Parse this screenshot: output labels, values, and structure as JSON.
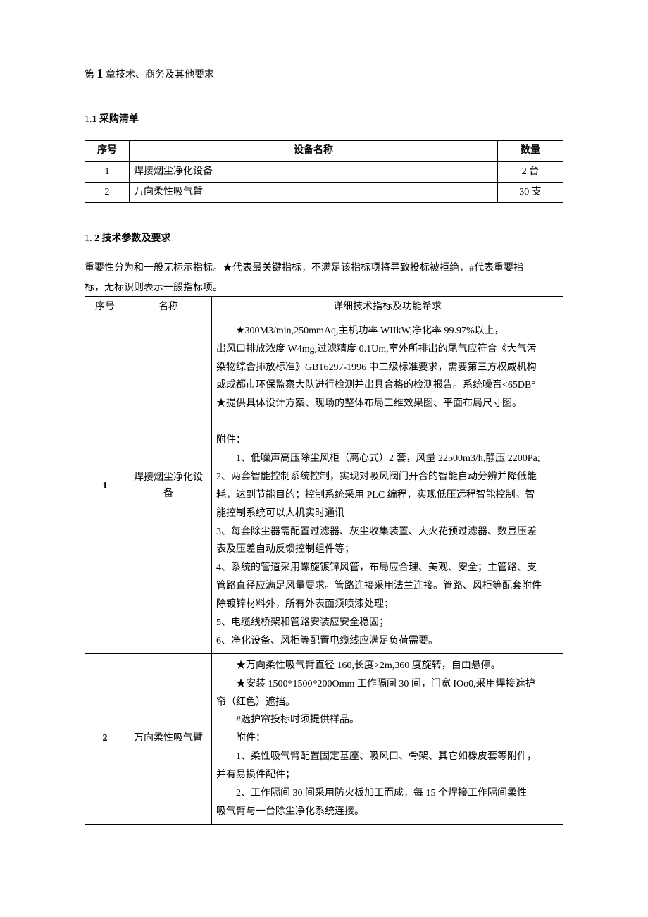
{
  "chapter": {
    "prefix": "第",
    "num": "1",
    "suffix": "章技术、商务及其他要求"
  },
  "section1": {
    "prefix": "1.",
    "num": "1",
    "label": "采购清单"
  },
  "purchase_table": {
    "headers": {
      "seq": "序号",
      "name": "设备名称",
      "qty": "数量"
    },
    "rows": [
      {
        "seq": "1",
        "name": "焊接烟尘净化设备",
        "qty": "2 台"
      },
      {
        "seq": "2",
        "name": "万向柔性吸气臂",
        "qty": "30 支"
      }
    ]
  },
  "section2": {
    "prefix": "1.",
    "num": "2",
    "label": "技术参数及要求"
  },
  "note_line1": "重要性分为和一般无标示指标。★代表最关键指标，不满足该指标项将导致投标被拒绝，#代表重要指",
  "note_line2": "标，无标识则表示一般指标项。",
  "spec_table": {
    "headers": {
      "seq": "序号",
      "name": "名称",
      "detail": "详细技术指标及功能希求"
    },
    "rows": [
      {
        "seq": "1",
        "name": "焊接烟尘净化设备",
        "lines": {
          "l1": "★300M3/min,250mmAq,主机功率 WIIkW,净化率 99.97%以上，",
          "l2": "出风口排放浓度 W4mg,过滤精度 0.1Um,室外所排出的尾气应符合《大气污",
          "l3": "染物综合排放标准》GB16297-1996 中二级标准要求，需要第三方权威机构",
          "l4": "或成都市环保监察大队进行检测并出具合格的检测报告。系统噪音<65DB°",
          "l5": "★提供具体设计方案、现场的整体布局三维效果图、平面布局尺寸图。",
          "l6": "附件：",
          "l7": "1、低噪声高压除尘风柜（离心式）2 套，风量 22500m3/h,静压 2200Pa;",
          "l8": "2、两套智能控制系统控制，实现对吸风阀门开合的智能自动分辨并降低能",
          "l9": "耗，达到节能目的；控制系统采用 PLC 编程，实现低压远程智能控制。智",
          "l10": "能控制系统可以人机实时通讯",
          "l11": "3、每套除尘器需配置过滤器、灰尘收集装置、大火花预过滤器、数显压差",
          "l12": "表及压差自动反馈控制组件等；",
          "l13": "4、系统的管道采用螺旋镀锌风管，布局应合理、美观、安全；主管路、支",
          "l14": "管路直径应满足风量要求。管路连接采用法兰连接。管路、风柜等配套附件",
          "l15": "除镀锌材料外，所有外表面须喷漆处理；",
          "l16": "5、电缆线桥架和管路安装应安全稳固；",
          "l17": "6、净化设备、风柜等配置电缆线应满足负荷需要。"
        }
      },
      {
        "seq": "2",
        "name": "万向柔性吸气臂",
        "lines": {
          "l1": "★万向柔性吸气臂直径 160,长度>2m,360 度旋转，自由悬停。",
          "l2": "★安装 1500*1500*200Omm 工作隔间 30 间，门宽 IOo0,采用焊接遮护",
          "l3": "帘（红色）遮挡。",
          "l4": "#遮护帘投标时须提供样品。",
          "l5": "附件：",
          "l6": "1、柔性吸气臂配置固定基座、吸风口、骨架、其它如橡皮套等附件，",
          "l7": "并有易损件配件；",
          "l8": "2、工作隔间 30 间采用防火板加工而成，每 15 个焊接工作隔间柔性",
          "l9": "吸气臂与一台除尘净化系统连接。"
        }
      }
    ]
  }
}
